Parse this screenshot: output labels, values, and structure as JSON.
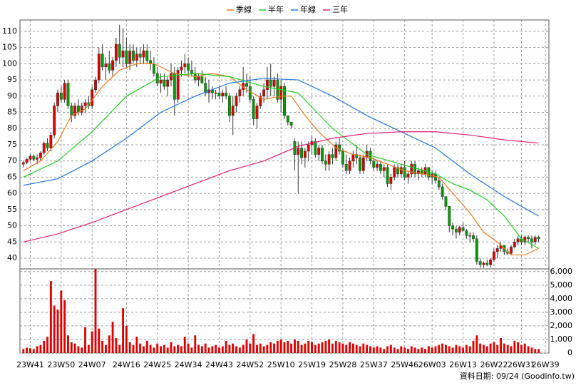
{
  "chart_data": {
    "type": "candlestick",
    "up_color": "#e00000",
    "down_color": "#00a000",
    "grid": true,
    "source": "資料日期: 09/24 (Goodinfo.tw)",
    "xlim": [
      -1,
      153
    ],
    "xticks": [
      {
        "value": 2,
        "label": "23W41"
      },
      {
        "value": 11,
        "label": "23W50"
      },
      {
        "value": 20,
        "label": "24W07"
      },
      {
        "value": 30,
        "label": "24W16"
      },
      {
        "value": 39,
        "label": "24W25"
      },
      {
        "value": 48,
        "label": "24W34"
      },
      {
        "value": 57,
        "label": "24W43"
      },
      {
        "value": 66,
        "label": "24W52"
      },
      {
        "value": 75,
        "label": "25W10"
      },
      {
        "value": 84,
        "label": "25W19"
      },
      {
        "value": 93,
        "label": "25W28"
      },
      {
        "value": 102,
        "label": "25W37"
      },
      {
        "value": 111,
        "label": "25W46"
      },
      {
        "value": 119,
        "label": "26W03"
      },
      {
        "value": 128,
        "label": "26W13"
      },
      {
        "value": 137,
        "label": "26W22"
      },
      {
        "value": 145,
        "label": "26W31"
      },
      {
        "value": 152,
        "label": "26W39"
      }
    ],
    "ylim": [
      36.7,
      113.5
    ],
    "yticks": [
      40,
      45,
      50,
      55,
      60,
      65,
      70,
      75,
      80,
      85,
      90,
      95,
      100,
      105,
      110
    ],
    "candles": [
      [
        69,
        70,
        68,
        69.5
      ],
      [
        69.5,
        71,
        69,
        70.5
      ],
      [
        70.5,
        72,
        70,
        71.5
      ],
      [
        71.5,
        72,
        70,
        70.5
      ],
      [
        70.5,
        72,
        69,
        71
      ],
      [
        71,
        73,
        70,
        72.5
      ],
      [
        72.5,
        76,
        72,
        75.5
      ],
      [
        75.5,
        77,
        73,
        74
      ],
      [
        74,
        79,
        73,
        78
      ],
      [
        78,
        88,
        77,
        87
      ],
      [
        87,
        92,
        85,
        91
      ],
      [
        91,
        93,
        88,
        89
      ],
      [
        89,
        95,
        88,
        94
      ],
      [
        94,
        95,
        86,
        87
      ],
      [
        87,
        88,
        82,
        84
      ],
      [
        84,
        88,
        83,
        87
      ],
      [
        87,
        89,
        84,
        85
      ],
      [
        85,
        88,
        84,
        87
      ],
      [
        87,
        89,
        85,
        88
      ],
      [
        88,
        90,
        86,
        87
      ],
      [
        87,
        93,
        86,
        92
      ],
      [
        92,
        96,
        91,
        95
      ],
      [
        95,
        105,
        94,
        103
      ],
      [
        103,
        106,
        98,
        99
      ],
      [
        99,
        102,
        95,
        100
      ],
      [
        100,
        104,
        97,
        98
      ],
      [
        98,
        102,
        96,
        101
      ],
      [
        101,
        108,
        99,
        106
      ],
      [
        106,
        112,
        100,
        102
      ],
      [
        102,
        111,
        99,
        104
      ],
      [
        104,
        108,
        99,
        100
      ],
      [
        100,
        106,
        98,
        104
      ],
      [
        104,
        106,
        100,
        101
      ],
      [
        101,
        105,
        99,
        103
      ],
      [
        103,
        105,
        100,
        102
      ],
      [
        102,
        106,
        100,
        104
      ],
      [
        104,
        106,
        100,
        101
      ],
      [
        101,
        104,
        98,
        100
      ],
      [
        100,
        102,
        96,
        97
      ],
      [
        97,
        99,
        93,
        94
      ],
      [
        94,
        97,
        91,
        95
      ],
      [
        95,
        97,
        92,
        93
      ],
      [
        93,
        96,
        90,
        95
      ],
      [
        95,
        100,
        93,
        97
      ],
      [
        97,
        99,
        84,
        89
      ],
      [
        89,
        99,
        88,
        98
      ],
      [
        98,
        101,
        96,
        99
      ],
      [
        99,
        103,
        97,
        100
      ],
      [
        100,
        102,
        96,
        98
      ],
      [
        98,
        101,
        96,
        97
      ],
      [
        97,
        99,
        94,
        95
      ],
      [
        95,
        97,
        93,
        96
      ],
      [
        96,
        98,
        94,
        94
      ],
      [
        94,
        96,
        90,
        91
      ],
      [
        91,
        95,
        88,
        92
      ],
      [
        92,
        93,
        89,
        91
      ],
      [
        91,
        92,
        89,
        91
      ],
      [
        91,
        93,
        89,
        90
      ],
      [
        90,
        92,
        88,
        91
      ],
      [
        91,
        93,
        89,
        90
      ],
      [
        90,
        91,
        82,
        84
      ],
      [
        84,
        90,
        78,
        87
      ],
      [
        87,
        91,
        85,
        90
      ],
      [
        90,
        93,
        88,
        92
      ],
      [
        92,
        99,
        90,
        94
      ],
      [
        94,
        97,
        91,
        93
      ],
      [
        93,
        96,
        88,
        89
      ],
      [
        89,
        90,
        81,
        83
      ],
      [
        83,
        88,
        80,
        87
      ],
      [
        87,
        91,
        86,
        90
      ],
      [
        90,
        94,
        88,
        92
      ],
      [
        92,
        99,
        89,
        95
      ],
      [
        95,
        100,
        90,
        93
      ],
      [
        93,
        96,
        90,
        95
      ],
      [
        95,
        97,
        88,
        89
      ],
      [
        89,
        95,
        85,
        93
      ],
      [
        93,
        94,
        83,
        84
      ],
      [
        84,
        84,
        81,
        82
      ],
      [
        82,
        82,
        80,
        81
      ],
      [
        76,
        77,
        67,
        72
      ],
      [
        72,
        76,
        60,
        74
      ],
      [
        74,
        76,
        69,
        71
      ],
      [
        71,
        74,
        68,
        73
      ],
      [
        73,
        76,
        70,
        75
      ],
      [
        75,
        78,
        72,
        76
      ],
      [
        76,
        77,
        71,
        72
      ],
      [
        72,
        75,
        70,
        74
      ],
      [
        74,
        75,
        69,
        70
      ],
      [
        70,
        72,
        67,
        69
      ],
      [
        69,
        73,
        67,
        72
      ],
      [
        72,
        74,
        69,
        71
      ],
      [
        71,
        76,
        70,
        75
      ],
      [
        75,
        77,
        72,
        73
      ],
      [
        73,
        74,
        68,
        69
      ],
      [
        69,
        72,
        66,
        67
      ],
      [
        67,
        71,
        66,
        70
      ],
      [
        70,
        73,
        68,
        72
      ],
      [
        72,
        75,
        69,
        71
      ],
      [
        71,
        72,
        66,
        67
      ],
      [
        67,
        72,
        66,
        71
      ],
      [
        71,
        75,
        70,
        73
      ],
      [
        73,
        74,
        69,
        70
      ],
      [
        70,
        71,
        67,
        68
      ],
      [
        68,
        70,
        67,
        69
      ],
      [
        69,
        70,
        66,
        67
      ],
      [
        67,
        69,
        65,
        68
      ],
      [
        68,
        69,
        62,
        63
      ],
      [
        63,
        66,
        61,
        65
      ],
      [
        65,
        69,
        64,
        68
      ],
      [
        68,
        69,
        65,
        66
      ],
      [
        66,
        69,
        65,
        68
      ],
      [
        68,
        70,
        64,
        65
      ],
      [
        65,
        67,
        63,
        66
      ],
      [
        66,
        70,
        65,
        69
      ],
      [
        69,
        70,
        65,
        66
      ],
      [
        66,
        68,
        64,
        67
      ],
      [
        67,
        68,
        65,
        66
      ],
      [
        66,
        69,
        65,
        68
      ],
      [
        68,
        68,
        64,
        65
      ],
      [
        65,
        67,
        63,
        66
      ],
      [
        66,
        67,
        63,
        64
      ],
      [
        64,
        65,
        61,
        62
      ],
      [
        62,
        63,
        58,
        59
      ],
      [
        59,
        59,
        55,
        56
      ],
      [
        56,
        56,
        48,
        50
      ],
      [
        50,
        51,
        47,
        49
      ],
      [
        49,
        50,
        46,
        48
      ],
      [
        48,
        50,
        47,
        49.5
      ],
      [
        49.5,
        51,
        48,
        48.5
      ],
      [
        48.5,
        49,
        46,
        47
      ],
      [
        47,
        48,
        45,
        47
      ],
      [
        47,
        48,
        45,
        46
      ],
      [
        46,
        47,
        38,
        39
      ],
      [
        39,
        40,
        37,
        38
      ],
      [
        38,
        39,
        37,
        38.5
      ],
      [
        38.5,
        39.5,
        37.5,
        38
      ],
      [
        38,
        40,
        37,
        39.5
      ],
      [
        39.5,
        43,
        39,
        42
      ],
      [
        42,
        44,
        40,
        43
      ],
      [
        43,
        45,
        42,
        44
      ],
      [
        44,
        44,
        41,
        42
      ],
      [
        42,
        43,
        41,
        41.5
      ],
      [
        41.5,
        44,
        41,
        43.5
      ],
      [
        43.5,
        46,
        43,
        45
      ],
      [
        45,
        47,
        44,
        46
      ],
      [
        46,
        47,
        44,
        45
      ],
      [
        45,
        47,
        44,
        46.5
      ],
      [
        46.5,
        47,
        45,
        46
      ],
      [
        46,
        47,
        43,
        45
      ],
      [
        45,
        47,
        44,
        46.5
      ],
      [
        46.5,
        47,
        45,
        46
      ]
    ],
    "volume": {
      "color": "#e00000",
      "ylim": [
        0,
        6200
      ],
      "yticks": [
        0,
        {
          "value": 1000,
          "label": "1,000"
        },
        {
          "value": 2000,
          "label": "2,000"
        },
        {
          "value": 3000,
          "label": "3,000"
        },
        {
          "value": 4000,
          "label": "4,000"
        },
        {
          "value": 5000,
          "label": "5,000"
        },
        {
          "value": 6000,
          "label": "6,000"
        }
      ],
      "values": [
        300,
        400,
        350,
        300,
        500,
        600,
        900,
        1200,
        5300,
        3500,
        3200,
        4600,
        3900,
        1300,
        800,
        700,
        500,
        400,
        1900,
        600,
        1600,
        6200,
        1800,
        900,
        600,
        1300,
        2300,
        1100,
        600,
        3300,
        2000,
        800,
        600,
        1200,
        700,
        500,
        900,
        600,
        400,
        700,
        500,
        600,
        400,
        800,
        500,
        600,
        500,
        1200,
        700,
        400,
        1300,
        600,
        500,
        700,
        400,
        500,
        600,
        400,
        500,
        900,
        600,
        700,
        500,
        400,
        600,
        1000,
        700,
        1400,
        600,
        700,
        500,
        600,
        800,
        700,
        900,
        1000,
        800,
        900,
        700,
        1000,
        900,
        600,
        700,
        900,
        800,
        600,
        700,
        800,
        900,
        1000,
        700,
        900,
        800,
        700,
        600,
        800,
        700,
        600,
        500,
        700,
        600,
        500,
        400,
        500,
        400,
        300,
        500,
        600,
        400,
        300,
        500,
        400,
        300,
        500,
        400,
        300,
        400,
        300,
        500,
        400,
        500,
        600,
        700,
        600,
        500,
        400,
        600,
        500,
        400,
        600,
        500,
        900,
        1300,
        700,
        600,
        500,
        700,
        800,
        600,
        1100,
        700,
        600,
        500,
        900,
        800,
        600,
        700,
        500,
        400,
        300,
        300
      ]
    },
    "series": [
      {
        "name": "季線",
        "color": "#e87a1e",
        "x": [
          0,
          5,
          10,
          14,
          18,
          23,
          28,
          33,
          38,
          44,
          50,
          55,
          60,
          65,
          70,
          75,
          78,
          82,
          86,
          91,
          96,
          101,
          106,
          111,
          116,
          121,
          125,
          130,
          134,
          138,
          142,
          146,
          150
        ],
        "values": [
          67,
          70,
          76,
          84,
          86,
          93,
          98,
          100,
          100,
          97,
          96,
          97,
          96,
          92,
          89,
          90,
          90,
          84,
          79,
          74,
          72,
          71,
          69,
          67,
          66,
          65,
          60,
          54,
          48,
          45,
          41,
          41,
          43
        ]
      },
      {
        "name": "半年",
        "color": "#22cc22",
        "x": [
          0,
          10,
          20,
          30,
          40,
          50,
          60,
          70,
          80,
          90,
          100,
          110,
          120,
          125,
          130,
          135,
          140,
          145,
          150
        ],
        "values": [
          65,
          70,
          79,
          90,
          96,
          97,
          96,
          93,
          91,
          80,
          72,
          69,
          66,
          63,
          61,
          58,
          53,
          46,
          43
        ]
      },
      {
        "name": "年線",
        "color": "#2277dd",
        "x": [
          0,
          10,
          20,
          30,
          40,
          50,
          60,
          70,
          80,
          90,
          100,
          110,
          120,
          130,
          140,
          150
        ],
        "values": [
          62.5,
          64.5,
          70,
          77,
          85,
          90,
          94,
          95.5,
          95,
          90,
          84,
          79,
          74,
          66,
          59,
          53
        ]
      },
      {
        "name": "三年",
        "color": "#dd2277",
        "x": [
          0,
          10,
          20,
          30,
          40,
          50,
          60,
          70,
          80,
          90,
          100,
          110,
          120,
          130,
          140,
          150
        ],
        "values": [
          45,
          47.5,
          51,
          55,
          59,
          63,
          67,
          70,
          74.5,
          77,
          78.5,
          79,
          79,
          78,
          76.5,
          75.5
        ]
      }
    ]
  }
}
